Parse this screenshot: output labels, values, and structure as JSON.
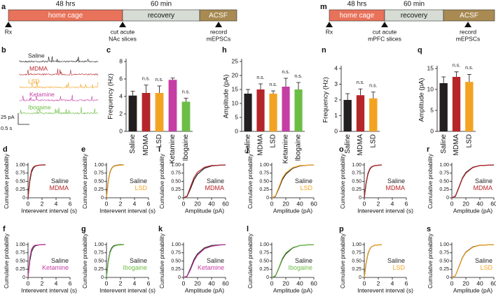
{
  "timelines": [
    {
      "panel": "a",
      "segments": [
        {
          "name": "home cage",
          "duration": "48 hrs",
          "color": "#e8725a"
        },
        {
          "name": "recovery",
          "duration": "60 min",
          "color": "#d7ddd5"
        },
        {
          "name": "ACSF",
          "color": "#a88a52"
        }
      ],
      "events": [
        [
          "Rx"
        ],
        [
          "cut acute",
          "NAc slices"
        ],
        [
          "record",
          "mEPSCs"
        ]
      ]
    },
    {
      "panel": "m",
      "segments": [
        {
          "name": "home cage",
          "duration": "48 hrs",
          "color": "#e8725a"
        },
        {
          "name": "recovery",
          "duration": "60 min",
          "color": "#d7ddd5"
        },
        {
          "name": "ACSF",
          "color": "#a88a52"
        }
      ],
      "events": [
        [
          "Rx"
        ],
        [
          "cut acute",
          "mPFC slices"
        ],
        [
          "record",
          "mEPSCs"
        ]
      ]
    }
  ],
  "traces": {
    "panel": "b",
    "items": [
      {
        "name": "Saline",
        "color": "#231f20"
      },
      {
        "name": "MDMA",
        "color": "#b5262b"
      },
      {
        "name": "LSD",
        "color": "#f3a322"
      },
      {
        "name": "Ketamine",
        "color": "#c43ea3"
      },
      {
        "name": "Ibogaine",
        "color": "#6cbd45"
      }
    ],
    "scale_y": "25 pA",
    "scale_x": "0.5 s"
  },
  "chart_data": [
    {
      "type": "bar",
      "panel": "c",
      "y_label": "Frequency (Hz)",
      "categories": [
        "Saline",
        "MDMA",
        "LSD",
        "Ketamine",
        "Ibogaine"
      ],
      "values": [
        4.1,
        4.4,
        4.4,
        5.9,
        3.4
      ],
      "errors": [
        0.5,
        0.9,
        0.8,
        0.2,
        0.4
      ],
      "colors": [
        "#231f20",
        "#b5262b",
        "#f3a322",
        "#c43ea3",
        "#6cbd45"
      ],
      "annotations": [
        null,
        "n.s.",
        "n.s.",
        null,
        "n.s."
      ],
      "ylim": [
        0,
        8
      ],
      "yticks": [
        0,
        2,
        4,
        6,
        8
      ]
    },
    {
      "type": "bar",
      "panel": "h",
      "y_label": "Amplitude (pA)",
      "categories": [
        "Saline",
        "MDMA",
        "LSD",
        "Ketamine",
        "Ibogaine"
      ],
      "values": [
        13.5,
        15,
        13.5,
        16,
        15
      ],
      "errors": [
        1.5,
        2,
        1,
        3,
        2.5
      ],
      "colors": [
        "#231f20",
        "#b5262b",
        "#f3a322",
        "#c43ea3",
        "#6cbd45"
      ],
      "annotations": [
        null,
        "n.s.",
        "n.s.",
        "n.s.",
        "n.s."
      ],
      "ylim": [
        0,
        25
      ],
      "yticks": [
        0,
        5,
        10,
        15,
        20,
        25
      ]
    },
    {
      "type": "bar",
      "panel": "n",
      "y_label": "Frequency (Hz)",
      "categories": [
        "Saline",
        "MDMA",
        "LSD"
      ],
      "values": [
        2.0,
        2.3,
        2.1
      ],
      "errors": [
        0.4,
        0.4,
        0.4
      ],
      "colors": [
        "#231f20",
        "#b5262b",
        "#f3a322"
      ],
      "annotations": [
        null,
        "n.s.",
        "n.s."
      ],
      "ylim": [
        0,
        4
      ],
      "yticks": [
        0,
        1,
        2,
        3,
        4
      ]
    },
    {
      "type": "bar",
      "panel": "q",
      "y_label": "Amplitude (pA)",
      "categories": [
        "Saline",
        "MDMA",
        "LSD"
      ],
      "values": [
        11.5,
        13,
        11.8
      ],
      "errors": [
        1.5,
        1.2,
        1.8
      ],
      "colors": [
        "#231f20",
        "#b5262b",
        "#f3a322"
      ],
      "annotations": [
        null,
        "n.s.",
        "n.s."
      ],
      "ylim": [
        0,
        15
      ],
      "yticks": [
        0,
        5,
        10,
        15
      ]
    },
    {
      "type": "line",
      "panel": "d",
      "x_label": "Interevent interval (s)",
      "y_label": "Cumulative probability",
      "x": [
        0,
        0.25,
        0.5,
        0.75,
        1,
        1.5,
        2,
        2.5
      ],
      "series": [
        {
          "name": "Saline",
          "color": "#231f20",
          "values": [
            0,
            0.5,
            0.78,
            0.9,
            0.96,
            0.99,
            1,
            1
          ]
        },
        {
          "name": "MDMA",
          "color": "#b5262b",
          "values": [
            0,
            0.56,
            0.83,
            0.93,
            0.97,
            0.99,
            1,
            1
          ]
        }
      ],
      "xlim": [
        0,
        6
      ],
      "xticks": [
        0,
        2,
        4,
        6
      ],
      "ylim": [
        0,
        1
      ],
      "yticks": [
        0,
        0.25,
        {
          "value": 0.5,
          "label": "0.50"
        },
        0.75,
        {
          "value": 1,
          "label": "1.00"
        }
      ]
    },
    {
      "type": "line",
      "panel": "e",
      "x_label": "Interevent interval (s)",
      "y_label": "Cumulative probability",
      "x": [
        0,
        0.25,
        0.5,
        0.75,
        1,
        1.5,
        2,
        2.5
      ],
      "series": [
        {
          "name": "Saline",
          "color": "#231f20",
          "values": [
            0,
            0.5,
            0.78,
            0.9,
            0.96,
            0.99,
            1,
            1
          ]
        },
        {
          "name": "LSD",
          "color": "#f3a322",
          "values": [
            0,
            0.48,
            0.76,
            0.89,
            0.95,
            0.98,
            0.99,
            1
          ]
        }
      ],
      "xlim": [
        0,
        6
      ],
      "xticks": [
        0,
        2,
        4,
        6
      ],
      "ylim": [
        0,
        1
      ],
      "yticks": [
        0,
        0.25,
        {
          "value": 0.5,
          "label": "0.50"
        },
        0.75,
        {
          "value": 1,
          "label": "1.00"
        }
      ]
    },
    {
      "type": "line",
      "panel": "i",
      "x_label": "Amplitude (pA)",
      "y_label": "Cumulative probability",
      "x": [
        0,
        5,
        10,
        15,
        20,
        30,
        40,
        50,
        60
      ],
      "series": [
        {
          "name": "Saline",
          "color": "#231f20",
          "values": [
            0,
            0.04,
            0.28,
            0.55,
            0.72,
            0.9,
            0.97,
            0.99,
            1
          ]
        },
        {
          "name": "MDMA",
          "color": "#b5262b",
          "values": [
            0,
            0.05,
            0.34,
            0.62,
            0.78,
            0.93,
            0.98,
            0.99,
            1
          ]
        }
      ],
      "xlim": [
        0,
        60
      ],
      "xticks": [
        0,
        20,
        40,
        60
      ],
      "ylim": [
        0,
        1
      ],
      "yticks": [
        0,
        0.25,
        {
          "value": 0.5,
          "label": "0.50"
        },
        0.75,
        {
          "value": 1,
          "label": "1.00"
        }
      ]
    },
    {
      "type": "line",
      "panel": "j",
      "x_label": "Amplitude (pA)",
      "y_label": "Cumulative probability",
      "x": [
        0,
        5,
        10,
        15,
        20,
        30,
        40,
        50,
        60
      ],
      "series": [
        {
          "name": "Saline",
          "color": "#231f20",
          "values": [
            0,
            0.04,
            0.28,
            0.55,
            0.72,
            0.9,
            0.97,
            0.99,
            1
          ]
        },
        {
          "name": "LSD",
          "color": "#f3a322",
          "values": [
            0,
            0.05,
            0.32,
            0.6,
            0.76,
            0.92,
            0.98,
            0.99,
            1
          ]
        }
      ],
      "xlim": [
        0,
        60
      ],
      "xticks": [
        0,
        20,
        40,
        60
      ],
      "ylim": [
        0,
        1
      ],
      "yticks": [
        0,
        0.25,
        {
          "value": 0.5,
          "label": "0.50"
        },
        0.75,
        {
          "value": 1,
          "label": "1.00"
        }
      ]
    },
    {
      "type": "line",
      "panel": "o",
      "x_label": "Interevent interval (s)",
      "y_label": "Cumulative probability",
      "x": [
        0,
        0.25,
        0.5,
        0.75,
        1,
        1.5,
        2,
        2.5
      ],
      "series": [
        {
          "name": "Saline",
          "color": "#231f20",
          "values": [
            0,
            0.42,
            0.7,
            0.85,
            0.93,
            0.98,
            0.99,
            1
          ]
        },
        {
          "name": "MDMA",
          "color": "#b5262b",
          "values": [
            0,
            0.45,
            0.73,
            0.87,
            0.94,
            0.98,
            0.99,
            1
          ]
        }
      ],
      "xlim": [
        0,
        6
      ],
      "xticks": [
        0,
        2,
        4,
        6
      ],
      "ylim": [
        0,
        1
      ],
      "yticks": [
        0,
        0.25,
        {
          "value": 0.5,
          "label": "0.50"
        },
        0.75,
        {
          "value": 1,
          "label": "1.00"
        }
      ]
    },
    {
      "type": "line",
      "panel": "r",
      "x_label": "Amplitude (pA)",
      "y_label": "Cumulative probability",
      "x": [
        0,
        5,
        10,
        15,
        20,
        30,
        40,
        50,
        60
      ],
      "series": [
        {
          "name": "Saline",
          "color": "#231f20",
          "values": [
            0,
            0.05,
            0.32,
            0.6,
            0.77,
            0.93,
            0.98,
            0.99,
            1
          ]
        },
        {
          "name": "MDMA",
          "color": "#b5262b",
          "values": [
            0,
            0.04,
            0.3,
            0.58,
            0.75,
            0.92,
            0.98,
            0.99,
            1
          ]
        }
      ],
      "xlim": [
        0,
        60
      ],
      "xticks": [
        0,
        20,
        40,
        60
      ],
      "ylim": [
        0,
        1
      ],
      "yticks": [
        0,
        0.25,
        {
          "value": 0.5,
          "label": "0.50"
        },
        0.75,
        {
          "value": 1,
          "label": "1.00"
        }
      ]
    },
    {
      "type": "line",
      "panel": "f",
      "x_label": "Interevent interval (s)",
      "y_label": "Cumulative probability",
      "x": [
        0,
        0.25,
        0.5,
        0.75,
        1,
        1.5,
        2,
        2.5
      ],
      "series": [
        {
          "name": "Saline",
          "color": "#231f20",
          "values": [
            0,
            0.5,
            0.78,
            0.9,
            0.96,
            0.99,
            1,
            1
          ]
        },
        {
          "name": "Ketamine",
          "color": "#c43ea3",
          "values": [
            0,
            0.6,
            0.86,
            0.95,
            0.98,
            0.99,
            1,
            1
          ]
        }
      ],
      "xlim": [
        0,
        6
      ],
      "xticks": [
        0,
        2,
        4,
        6
      ],
      "ylim": [
        0,
        1
      ],
      "yticks": [
        0,
        0.25,
        {
          "value": 0.5,
          "label": "0.50"
        },
        0.75,
        {
          "value": 1,
          "label": "1.00"
        }
      ]
    },
    {
      "type": "line",
      "panel": "g",
      "x_label": "Interevent interval (s)",
      "y_label": "Cumulative probability",
      "x": [
        0,
        0.25,
        0.5,
        0.75,
        1,
        1.5,
        2,
        2.5
      ],
      "series": [
        {
          "name": "Saline",
          "color": "#231f20",
          "values": [
            0,
            0.5,
            0.78,
            0.9,
            0.96,
            0.99,
            1,
            1
          ]
        },
        {
          "name": "Ibogaine",
          "color": "#6cbd45",
          "values": [
            0,
            0.46,
            0.74,
            0.87,
            0.94,
            0.98,
            0.99,
            1
          ]
        }
      ],
      "xlim": [
        0,
        6
      ],
      "xticks": [
        0,
        2,
        4,
        6
      ],
      "ylim": [
        0,
        1
      ],
      "yticks": [
        0,
        0.25,
        {
          "value": 0.5,
          "label": "0.50"
        },
        0.75,
        {
          "value": 1,
          "label": "1.00"
        }
      ]
    },
    {
      "type": "line",
      "panel": "k",
      "x_label": "Amplitude (pA)",
      "y_label": "Cumulative probability",
      "x": [
        0,
        5,
        10,
        15,
        20,
        30,
        40,
        50,
        60
      ],
      "series": [
        {
          "name": "Saline",
          "color": "#231f20",
          "values": [
            0,
            0.04,
            0.28,
            0.55,
            0.72,
            0.9,
            0.97,
            0.99,
            1
          ]
        },
        {
          "name": "Ketamine",
          "color": "#c43ea3",
          "values": [
            0,
            0.03,
            0.24,
            0.5,
            0.68,
            0.87,
            0.95,
            0.98,
            1
          ]
        }
      ],
      "xlim": [
        0,
        60
      ],
      "xticks": [
        0,
        20,
        40,
        60
      ],
      "ylim": [
        0,
        1
      ],
      "yticks": [
        0,
        0.25,
        {
          "value": 0.5,
          "label": "0.50"
        },
        0.75,
        {
          "value": 1,
          "label": "1.00"
        }
      ]
    },
    {
      "type": "line",
      "panel": "l",
      "x_label": "Amplitude (pA)",
      "y_label": "Cumulative probability",
      "x": [
        0,
        5,
        10,
        15,
        20,
        30,
        40,
        50,
        60
      ],
      "series": [
        {
          "name": "Saline",
          "color": "#231f20",
          "values": [
            0,
            0.04,
            0.28,
            0.55,
            0.72,
            0.9,
            0.97,
            0.99,
            1
          ]
        },
        {
          "name": "Ibogaine",
          "color": "#6cbd45",
          "values": [
            0,
            0.05,
            0.3,
            0.58,
            0.75,
            0.91,
            0.97,
            0.99,
            1
          ]
        }
      ],
      "xlim": [
        0,
        60
      ],
      "xticks": [
        0,
        20,
        40,
        60
      ],
      "ylim": [
        0,
        1
      ],
      "yticks": [
        0,
        0.25,
        {
          "value": 0.5,
          "label": "0.50"
        },
        0.75,
        {
          "value": 1,
          "label": "1.00"
        }
      ]
    },
    {
      "type": "line",
      "panel": "p",
      "x_label": "Interevent interval (s)",
      "y_label": "Cumulative probability",
      "x": [
        0,
        0.25,
        0.5,
        0.75,
        1,
        1.5,
        2,
        2.5
      ],
      "series": [
        {
          "name": "Saline",
          "color": "#231f20",
          "values": [
            0,
            0.42,
            0.7,
            0.85,
            0.93,
            0.98,
            0.99,
            1
          ]
        },
        {
          "name": "LSD",
          "color": "#f3a322",
          "values": [
            0,
            0.44,
            0.72,
            0.86,
            0.93,
            0.98,
            0.99,
            1
          ]
        }
      ],
      "xlim": [
        0,
        6
      ],
      "xticks": [
        0,
        2,
        4,
        6
      ],
      "ylim": [
        0,
        1
      ],
      "yticks": [
        0,
        0.25,
        {
          "value": 0.5,
          "label": "0.50"
        },
        0.75,
        {
          "value": 1,
          "label": "1.00"
        }
      ]
    },
    {
      "type": "line",
      "panel": "s",
      "x_label": "Amplitude (pA)",
      "y_label": "Cumulative probability",
      "x": [
        0,
        5,
        10,
        15,
        20,
        30,
        40,
        50,
        60
      ],
      "series": [
        {
          "name": "Saline",
          "color": "#231f20",
          "values": [
            0,
            0.05,
            0.32,
            0.6,
            0.77,
            0.93,
            0.98,
            0.99,
            1
          ]
        },
        {
          "name": "LSD",
          "color": "#f3a322",
          "values": [
            0,
            0.05,
            0.31,
            0.59,
            0.76,
            0.92,
            0.98,
            0.99,
            1
          ]
        }
      ],
      "xlim": [
        0,
        60
      ],
      "xticks": [
        0,
        20,
        40,
        60
      ],
      "ylim": [
        0,
        1
      ],
      "yticks": [
        0,
        0.25,
        {
          "value": 0.5,
          "label": "0.50"
        },
        0.75,
        {
          "value": 1,
          "label": "1.00"
        }
      ]
    }
  ]
}
